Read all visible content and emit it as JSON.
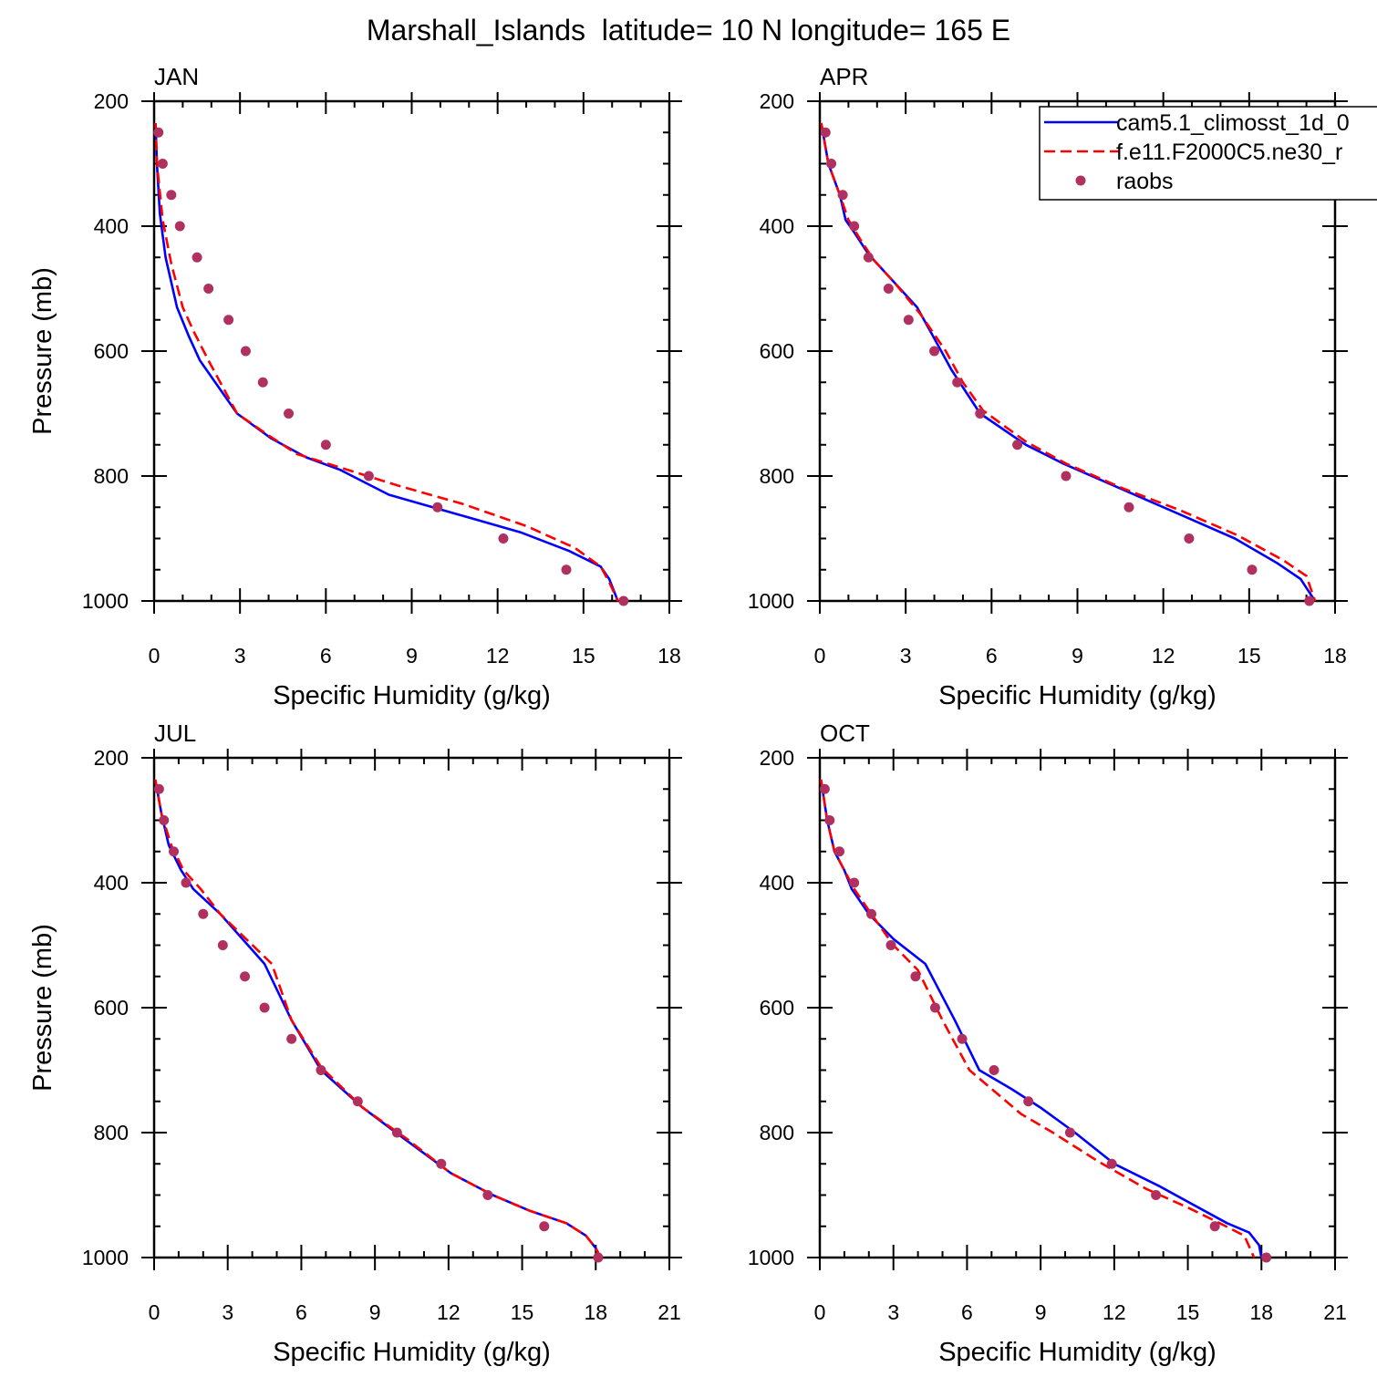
{
  "figure": {
    "title": "Marshall_Islands  latitude= 10 N longitude= 165 E"
  },
  "colors": {
    "cam": "#0000ff",
    "fe11": "#ff0000",
    "raobs": "#b03060"
  },
  "legend": {
    "placement": "top-right of APR panel",
    "entries": [
      {
        "label": "cam5.1_climosst_1d_0",
        "style": "solid",
        "color": "#0000ff"
      },
      {
        "label": "f.e11.F2000C5.ne30_r",
        "style": "dashed",
        "color": "#ff0000"
      },
      {
        "label": "raobs",
        "style": "marker",
        "color": "#b03060"
      }
    ]
  },
  "chart_data": [
    {
      "type": "line",
      "title": "JAN",
      "xlabel": "Specific Humidity (g/kg)",
      "ylabel": "Pressure (mb)",
      "xlim": [
        0,
        18
      ],
      "ylim": [
        1000,
        200
      ],
      "xticks": [
        0,
        3,
        6,
        9,
        12,
        15,
        18
      ],
      "yticks": [
        200,
        400,
        600,
        800,
        1000
      ],
      "series": [
        {
          "name": "cam5.1_climosst_1d_0",
          "style": "solid",
          "x": [
            0.05,
            0.1,
            0.2,
            0.4,
            0.8,
            1.2,
            1.6,
            2.9,
            4.1,
            5.3,
            6.5,
            8.2,
            10.5,
            12.8,
            14.5,
            15.6,
            15.9,
            16.2
          ],
          "y": [
            235,
            300,
            380,
            450,
            530,
            575,
            615,
            700,
            740,
            770,
            790,
            830,
            860,
            890,
            920,
            945,
            965,
            1000
          ]
        },
        {
          "name": "f.e11.F2000C5.ne30_r",
          "style": "dashed",
          "x": [
            0.05,
            0.1,
            0.3,
            0.6,
            1.0,
            1.4,
            1.9,
            2.9,
            4.0,
            5.0,
            6.4,
            8.5,
            10.8,
            13.0,
            14.7,
            15.6,
            15.9,
            16.2
          ],
          "y": [
            235,
            300,
            390,
            460,
            530,
            570,
            615,
            700,
            735,
            765,
            785,
            815,
            845,
            880,
            915,
            945,
            970,
            1000
          ]
        },
        {
          "name": "raobs",
          "style": "marker",
          "x": [
            0.15,
            0.3,
            0.6,
            0.9,
            1.5,
            1.9,
            2.6,
            3.2,
            3.8,
            4.7,
            6.0,
            7.5,
            9.9,
            12.2,
            14.4,
            16.4
          ],
          "y": [
            250,
            300,
            350,
            400,
            450,
            500,
            550,
            600,
            650,
            700,
            750,
            800,
            850,
            900,
            950,
            1000
          ]
        }
      ]
    },
    {
      "type": "line",
      "title": "APR",
      "xlabel": "Specific Humidity (g/kg)",
      "ylabel": "",
      "xlim": [
        0,
        18
      ],
      "ylim": [
        1000,
        200
      ],
      "xticks": [
        0,
        3,
        6,
        9,
        12,
        15,
        18
      ],
      "yticks": [
        200,
        400,
        600,
        800,
        1000
      ],
      "series": [
        {
          "name": "cam5.1_climosst_1d_0",
          "style": "solid",
          "x": [
            0.05,
            0.3,
            0.7,
            0.9,
            1.2,
            1.7,
            2.4,
            3.4,
            4.0,
            4.6,
            5.6,
            7.2,
            8.5,
            10.5,
            12.5,
            14.5,
            16.0,
            16.8,
            17.3
          ],
          "y": [
            235,
            300,
            350,
            390,
            410,
            445,
            480,
            530,
            580,
            630,
            700,
            750,
            780,
            820,
            860,
            900,
            940,
            965,
            1000
          ]
        },
        {
          "name": "f.e11.F2000C5.ne30_r",
          "style": "dashed",
          "x": [
            0.05,
            0.3,
            0.7,
            1.0,
            1.4,
            1.9,
            2.6,
            3.5,
            4.4,
            5.0,
            5.7,
            7.2,
            8.6,
            10.6,
            12.6,
            14.6,
            16.2,
            17.0,
            17.3
          ],
          "y": [
            235,
            300,
            350,
            390,
            420,
            455,
            490,
            540,
            600,
            650,
            695,
            745,
            780,
            820,
            855,
            895,
            935,
            960,
            1000
          ]
        },
        {
          "name": "raobs",
          "style": "marker",
          "x": [
            0.2,
            0.4,
            0.8,
            1.2,
            1.7,
            2.4,
            3.1,
            4.0,
            4.8,
            5.6,
            6.9,
            8.6,
            10.8,
            12.9,
            15.1,
            17.1
          ],
          "y": [
            250,
            300,
            350,
            400,
            450,
            500,
            550,
            600,
            650,
            700,
            750,
            800,
            850,
            900,
            950,
            1000
          ]
        }
      ]
    },
    {
      "type": "line",
      "title": "JUL",
      "xlabel": "Specific Humidity (g/kg)",
      "ylabel": "Pressure (mb)",
      "xlim": [
        0,
        21
      ],
      "ylim": [
        1000,
        200
      ],
      "xticks": [
        0,
        3,
        6,
        9,
        12,
        15,
        18,
        21
      ],
      "yticks": [
        200,
        400,
        600,
        800,
        1000
      ],
      "series": [
        {
          "name": "cam5.1_climosst_1d_0",
          "style": "solid",
          "x": [
            0.05,
            0.3,
            0.6,
            1.1,
            1.6,
            2.7,
            4.5,
            5.6,
            6.8,
            8.5,
            10.2,
            12.1,
            13.8,
            15.3,
            16.8,
            17.6,
            18.0,
            18.2
          ],
          "y": [
            235,
            290,
            340,
            380,
            410,
            450,
            530,
            620,
            700,
            760,
            810,
            865,
            900,
            925,
            945,
            965,
            985,
            1000
          ]
        },
        {
          "name": "f.e11.F2000C5.ne30_r",
          "style": "dashed",
          "x": [
            0.05,
            0.3,
            0.7,
            1.2,
            1.9,
            2.7,
            4.8,
            5.6,
            6.8,
            8.5,
            10.3,
            12.1,
            13.8,
            15.3,
            16.8,
            17.6,
            18.0,
            18.2
          ],
          "y": [
            235,
            290,
            340,
            380,
            410,
            450,
            530,
            620,
            695,
            760,
            810,
            865,
            900,
            925,
            945,
            965,
            985,
            1000
          ]
        },
        {
          "name": "raobs",
          "style": "marker",
          "x": [
            0.2,
            0.4,
            0.8,
            1.3,
            2.0,
            2.8,
            3.7,
            4.5,
            5.6,
            6.8,
            8.3,
            9.9,
            11.7,
            13.6,
            15.9,
            18.1
          ],
          "y": [
            250,
            300,
            350,
            400,
            450,
            500,
            550,
            600,
            650,
            700,
            750,
            800,
            850,
            900,
            950,
            1000
          ]
        }
      ]
    },
    {
      "type": "line",
      "title": "OCT",
      "xlabel": "Specific Humidity (g/kg)",
      "ylabel": "",
      "xlim": [
        0,
        21
      ],
      "ylim": [
        1000,
        200
      ],
      "xticks": [
        0,
        3,
        6,
        9,
        12,
        15,
        18,
        21
      ],
      "yticks": [
        200,
        400,
        600,
        800,
        1000
      ],
      "series": [
        {
          "name": "cam5.1_climosst_1d_0",
          "style": "solid",
          "x": [
            0.05,
            0.3,
            0.6,
            1.0,
            1.3,
            2.0,
            3.0,
            4.3,
            5.5,
            6.5,
            7.8,
            9.0,
            10.4,
            12.0,
            13.8,
            15.2,
            16.6,
            17.5,
            17.9,
            18.0
          ],
          "y": [
            235,
            300,
            350,
            380,
            410,
            450,
            490,
            530,
            620,
            700,
            730,
            760,
            800,
            850,
            885,
            915,
            945,
            960,
            980,
            1000
          ]
        },
        {
          "name": "f.e11.F2000C5.ne30_r",
          "style": "dashed",
          "x": [
            0.05,
            0.3,
            0.6,
            1.0,
            1.4,
            2.1,
            3.0,
            4.0,
            5.0,
            6.1,
            7.3,
            8.2,
            9.5,
            11.3,
            13.3,
            15.0,
            16.3,
            17.3,
            17.7
          ],
          "y": [
            235,
            300,
            350,
            380,
            410,
            450,
            500,
            540,
            620,
            700,
            740,
            770,
            800,
            845,
            890,
            920,
            945,
            965,
            1000
          ]
        },
        {
          "name": "raobs",
          "style": "marker",
          "x": [
            0.2,
            0.4,
            0.8,
            1.4,
            2.1,
            2.9,
            3.9,
            4.7,
            5.8,
            7.1,
            8.5,
            10.2,
            11.9,
            13.7,
            16.1,
            18.2
          ],
          "y": [
            250,
            300,
            350,
            400,
            450,
            500,
            550,
            600,
            650,
            700,
            750,
            800,
            850,
            900,
            950,
            1000
          ]
        }
      ]
    }
  ]
}
